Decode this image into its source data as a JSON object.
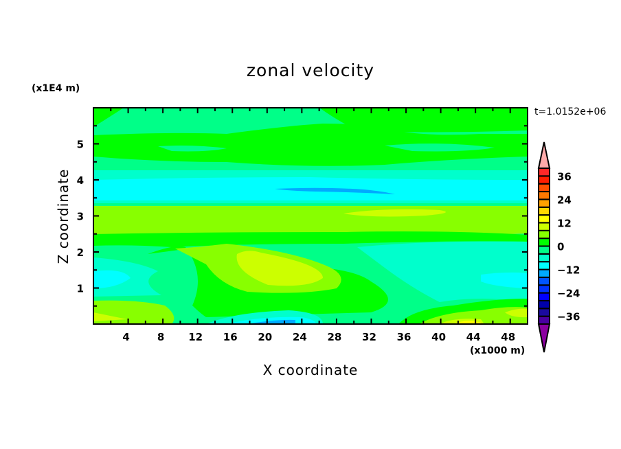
{
  "chart_data": {
    "type": "heatmap",
    "subtype": "filled-contour",
    "title": "zonal velocity",
    "xlabel": "X coordinate",
    "ylabel": "Z coordinate",
    "x_unit_label": "(x1000 m)",
    "y_unit_label": "(x1E4 m)",
    "time_label": "t=1.0152e+06",
    "xlim": [
      0,
      50
    ],
    "ylim": [
      0,
      6
    ],
    "x_ticks": [
      4,
      8,
      12,
      16,
      20,
      24,
      28,
      32,
      36,
      40,
      44,
      48
    ],
    "y_ticks": [
      1,
      2,
      3,
      4,
      5
    ],
    "colorbar": {
      "levels": [
        -40,
        -36,
        -32,
        -28,
        -24,
        -20,
        -16,
        -12,
        -8,
        -4,
        0,
        4,
        8,
        12,
        16,
        20,
        24,
        28,
        32,
        36,
        40
      ],
      "tick_labels": [
        "36",
        "24",
        "12",
        "0",
        "-12",
        "-24",
        "-36"
      ],
      "tick_values": [
        36,
        24,
        12,
        0,
        -12,
        -24,
        -36
      ],
      "colors_low_to_high": [
        "#4a00a0",
        "#1a0aa0",
        "#0000aa",
        "#0000ff",
        "#0033ff",
        "#0055ff",
        "#00aaff",
        "#00ffff",
        "#00ffcc",
        "#00ff88",
        "#00ff00",
        "#88ff00",
        "#ccff00",
        "#ffff00",
        "#ffd700",
        "#ffa000",
        "#ff7800",
        "#ff5000",
        "#ff1e00",
        "#ff2828"
      ],
      "over_color": "#ffaaaa",
      "under_color": "#8b00a0"
    }
  }
}
